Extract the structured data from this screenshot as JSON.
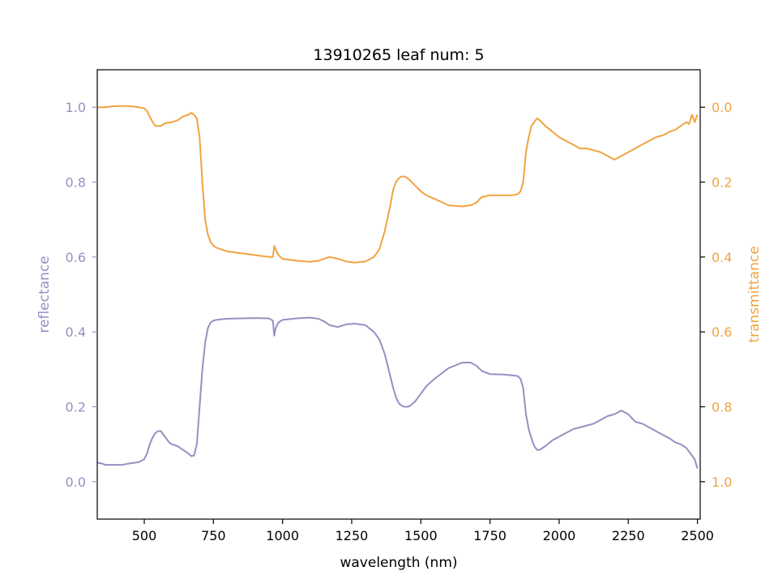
{
  "chart_data": {
    "type": "line",
    "title": "13910265 leaf num: 5",
    "xlabel": "wavelength (nm)",
    "ylabel_left": "reflectance",
    "ylabel_right": "transmittance",
    "xlim": [
      330,
      2510
    ],
    "ylim_left": [
      -0.1,
      1.1
    ],
    "ylim_right": [
      1.1,
      -0.1
    ],
    "grid": false,
    "x_ticks": [
      500,
      750,
      1000,
      1250,
      1500,
      1750,
      2000,
      2250,
      2500
    ],
    "y_left_ticks": [
      0.0,
      0.2,
      0.4,
      0.6,
      0.8,
      1.0
    ],
    "y_right_ticks": [
      0.0,
      0.2,
      0.4,
      0.6,
      0.8,
      1.0
    ],
    "colors": {
      "reflectance": "#9590c3",
      "transmittance": "#f0a440",
      "axis": "#000000"
    },
    "series": [
      {
        "name": "reflectance",
        "axis": "left",
        "x": [
          330,
          340,
          360,
          380,
          400,
          420,
          440,
          460,
          480,
          500,
          510,
          520,
          530,
          540,
          550,
          560,
          570,
          580,
          590,
          600,
          620,
          640,
          660,
          670,
          680,
          690,
          700,
          710,
          720,
          730,
          740,
          750,
          760,
          780,
          800,
          850,
          900,
          950,
          965,
          970,
          975,
          985,
          1000,
          1050,
          1100,
          1130,
          1150,
          1170,
          1200,
          1230,
          1260,
          1300,
          1330,
          1350,
          1370,
          1390,
          1400,
          1410,
          1420,
          1430,
          1440,
          1450,
          1460,
          1480,
          1500,
          1520,
          1550,
          1580,
          1600,
          1650,
          1680,
          1700,
          1720,
          1750,
          1800,
          1830,
          1850,
          1860,
          1870,
          1880,
          1890,
          1900,
          1910,
          1920,
          1930,
          1950,
          1975,
          2000,
          2025,
          2050,
          2075,
          2100,
          2125,
          2150,
          2175,
          2200,
          2225,
          2250,
          2275,
          2300,
          2325,
          2350,
          2375,
          2400,
          2420,
          2440,
          2460,
          2470,
          2480,
          2490,
          2500
        ],
        "y": [
          0.05,
          0.05,
          0.045,
          0.045,
          0.045,
          0.045,
          0.048,
          0.05,
          0.052,
          0.06,
          0.075,
          0.1,
          0.118,
          0.13,
          0.135,
          0.135,
          0.125,
          0.115,
          0.105,
          0.1,
          0.095,
          0.085,
          0.075,
          0.068,
          0.07,
          0.1,
          0.2,
          0.3,
          0.37,
          0.41,
          0.425,
          0.43,
          0.432,
          0.434,
          0.435,
          0.436,
          0.437,
          0.436,
          0.43,
          0.39,
          0.41,
          0.425,
          0.432,
          0.436,
          0.438,
          0.435,
          0.428,
          0.418,
          0.413,
          0.42,
          0.422,
          0.418,
          0.4,
          0.38,
          0.34,
          0.28,
          0.25,
          0.225,
          0.21,
          0.203,
          0.2,
          0.2,
          0.202,
          0.215,
          0.235,
          0.255,
          0.275,
          0.292,
          0.303,
          0.318,
          0.318,
          0.31,
          0.296,
          0.287,
          0.286,
          0.284,
          0.282,
          0.275,
          0.25,
          0.18,
          0.14,
          0.115,
          0.095,
          0.085,
          0.085,
          0.095,
          0.11,
          0.12,
          0.13,
          0.14,
          0.145,
          0.15,
          0.155,
          0.165,
          0.175,
          0.18,
          0.19,
          0.18,
          0.16,
          0.155,
          0.145,
          0.135,
          0.125,
          0.115,
          0.105,
          0.1,
          0.09,
          0.08,
          0.07,
          0.06,
          0.035
        ]
      },
      {
        "name": "transmittance",
        "axis": "right",
        "x": [
          330,
          340,
          360,
          380,
          400,
          420,
          440,
          460,
          480,
          500,
          510,
          520,
          530,
          540,
          550,
          560,
          570,
          580,
          600,
          620,
          640,
          660,
          670,
          680,
          690,
          700,
          710,
          720,
          730,
          740,
          750,
          760,
          780,
          800,
          850,
          900,
          950,
          965,
          970,
          975,
          985,
          1000,
          1050,
          1100,
          1130,
          1150,
          1170,
          1200,
          1230,
          1260,
          1300,
          1330,
          1350,
          1370,
          1390,
          1400,
          1410,
          1420,
          1430,
          1440,
          1450,
          1460,
          1480,
          1500,
          1520,
          1550,
          1580,
          1600,
          1650,
          1680,
          1700,
          1720,
          1750,
          1800,
          1830,
          1850,
          1860,
          1870,
          1880,
          1890,
          1900,
          1910,
          1920,
          1930,
          1950,
          1975,
          2000,
          2025,
          2050,
          2075,
          2100,
          2125,
          2150,
          2175,
          2200,
          2225,
          2250,
          2275,
          2300,
          2325,
          2350,
          2375,
          2400,
          2420,
          2440,
          2460,
          2470,
          2480,
          2490,
          2500
        ],
        "y": [
          0.0,
          0.0,
          0.0,
          -0.002,
          -0.003,
          -0.003,
          -0.003,
          -0.002,
          0.0,
          0.003,
          0.01,
          0.025,
          0.04,
          0.05,
          0.05,
          0.05,
          0.045,
          0.042,
          0.04,
          0.035,
          0.025,
          0.02,
          0.015,
          0.02,
          0.03,
          0.08,
          0.2,
          0.3,
          0.34,
          0.36,
          0.37,
          0.375,
          0.38,
          0.385,
          0.39,
          0.395,
          0.4,
          0.4,
          0.37,
          0.38,
          0.395,
          0.405,
          0.41,
          0.413,
          0.41,
          0.405,
          0.4,
          0.405,
          0.412,
          0.415,
          0.412,
          0.4,
          0.38,
          0.33,
          0.26,
          0.22,
          0.2,
          0.19,
          0.185,
          0.185,
          0.188,
          0.195,
          0.21,
          0.225,
          0.235,
          0.245,
          0.255,
          0.262,
          0.265,
          0.262,
          0.255,
          0.24,
          0.235,
          0.235,
          0.235,
          0.232,
          0.225,
          0.2,
          0.12,
          0.08,
          0.05,
          0.04,
          0.03,
          0.035,
          0.05,
          0.065,
          0.08,
          0.09,
          0.1,
          0.11,
          0.11,
          0.115,
          0.12,
          0.13,
          0.14,
          0.13,
          0.12,
          0.11,
          0.1,
          0.09,
          0.08,
          0.075,
          0.065,
          0.06,
          0.05,
          0.04,
          0.045,
          0.02,
          0.04,
          0.02
        ]
      }
    ]
  }
}
